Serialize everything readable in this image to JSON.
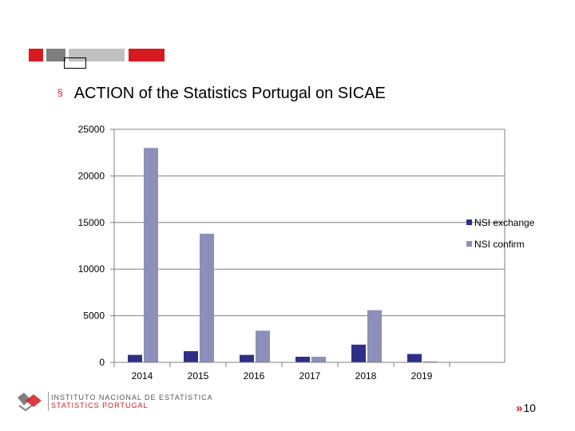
{
  "slide": {
    "title": "ACTION of the Statistics Portugal on SICAE",
    "bullet": "§",
    "page_marker": "»",
    "page_number": "10"
  },
  "footer": {
    "line1": "INSTITUTO NACIONAL DE ESTATÍSTICA",
    "line2": "STATISTICS PORTUGAL"
  },
  "colors": {
    "accent_red": "#d71920",
    "series_exchange": "#2e2f86",
    "series_confirm": "#8c8fb9",
    "axis": "#808080"
  },
  "chart_data": {
    "type": "bar",
    "categories": [
      "2014",
      "2015",
      "2016",
      "2017",
      "2018",
      "2019"
    ],
    "series": [
      {
        "name": "NSI exchange",
        "values": [
          800,
          1200,
          800,
          600,
          1900,
          900
        ]
      },
      {
        "name": "NSI confirm",
        "values": [
          23000,
          13800,
          3400,
          600,
          5600,
          100
        ]
      }
    ],
    "yticks": [
      "0",
      "5000",
      "10000",
      "15000",
      "20000",
      "25000"
    ],
    "ylim": [
      0,
      25000
    ],
    "legend_position": "right",
    "grid": "horizontal"
  }
}
